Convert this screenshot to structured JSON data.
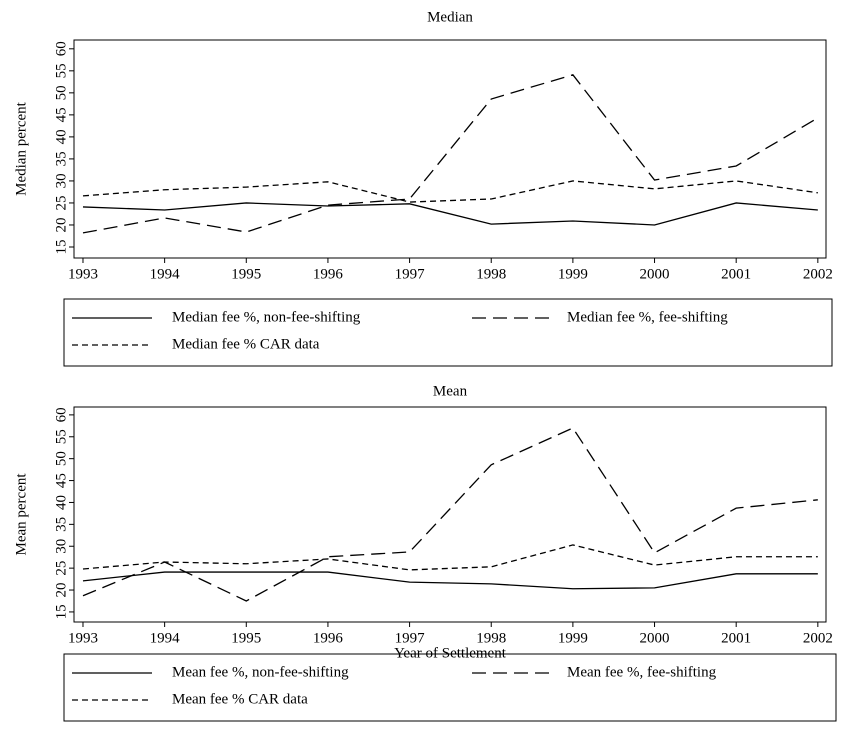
{
  "chart_data": [
    {
      "type": "line",
      "title": "Median",
      "y_label": "Median percent",
      "x": [
        1993,
        1994,
        1995,
        1996,
        1997,
        1998,
        1999,
        2000,
        2001,
        2002
      ],
      "xlim": [
        1992.89,
        2002.1
      ],
      "xticks": [
        1993,
        1994,
        1995,
        1996,
        1997,
        1998,
        1999,
        2000,
        2001,
        2002
      ],
      "ylim": [
        12.5,
        62
      ],
      "yticks": [
        15,
        20,
        25,
        30,
        35,
        40,
        45,
        50,
        55,
        60
      ],
      "series": [
        {
          "name": "Median fee %, non-fee-shifting",
          "color": "#000000",
          "dash": "solid",
          "values": [
            24.1,
            23.4,
            25,
            24.3,
            24.8,
            20.2,
            20.9,
            20,
            25,
            23.4
          ]
        },
        {
          "name": "Median fee %, fee-shifting",
          "color": "#000000",
          "dash": "long",
          "values": [
            18.2,
            21.6,
            18.4,
            24.5,
            25.9,
            48.6,
            54.1,
            30.2,
            33.4,
            44.3
          ]
        },
        {
          "name": "Median fee % CAR data",
          "color": "#000000",
          "dash": "short",
          "values": [
            26.6,
            28,
            28.6,
            29.8,
            25.2,
            25.9,
            30,
            28.2,
            30,
            27.3
          ]
        }
      ]
    },
    {
      "type": "line",
      "title": "Mean",
      "y_label": "Mean percent",
      "x_label": "Year of Settlement",
      "x": [
        1993,
        1994,
        1995,
        1996,
        1997,
        1998,
        1999,
        2000,
        2001,
        2002
      ],
      "xlim": [
        1992.89,
        2002.1
      ],
      "xticks": [
        1993,
        1994,
        1995,
        1996,
        1997,
        1998,
        1999,
        2000,
        2001,
        2002
      ],
      "ylim": [
        12.7,
        61.8
      ],
      "yticks": [
        15,
        20,
        25,
        30,
        35,
        40,
        45,
        50,
        55,
        60
      ],
      "series": [
        {
          "name": "Mean fee %, non-fee-shifting",
          "color": "#000000",
          "dash": "solid",
          "values": [
            22.1,
            24.1,
            24.1,
            24.1,
            21.8,
            21.4,
            20.3,
            20.5,
            23.7,
            23.7
          ]
        },
        {
          "name": "Mean fee %, fee-shifting",
          "color": "#000000",
          "dash": "long",
          "values": [
            18.7,
            26.4,
            17.5,
            27.6,
            28.7,
            48.6,
            57,
            28.5,
            38.7,
            40.6
          ]
        },
        {
          "name": "Mean fee % CAR data",
          "color": "#000000",
          "dash": "short",
          "values": [
            24.8,
            26.4,
            26,
            27.1,
            24.6,
            25.3,
            30.3,
            25.7,
            27.6,
            27.6
          ]
        }
      ]
    }
  ]
}
